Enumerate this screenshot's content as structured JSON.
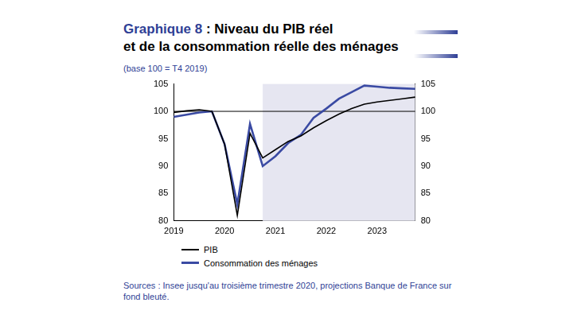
{
  "chart_data": {
    "type": "line",
    "title": [
      "Graphique 8 : Niveau du PIB réel",
      "et de la consommation réelle des ménages"
    ],
    "subtitle": "(base 100 = T4 2019)",
    "source": "Sources : Insee jusqu'au troisième trimestre 2020, projections Banque de France sur fond bleuté.",
    "categories": [
      "2019",
      null,
      null,
      null,
      "2020",
      null,
      null,
      null,
      "2021",
      null,
      null,
      null,
      "2022",
      null,
      null,
      null,
      "2023",
      null,
      null,
      null
    ],
    "series": [
      {
        "name": "PIB",
        "color": "#000000",
        "values": [
          99.8,
          100.1,
          100.3,
          100,
          94,
          81,
          96,
          91.5,
          93,
          94.5,
          95.5,
          97,
          98.3,
          99.5,
          100.5,
          101.3,
          101.7,
          102,
          102.3,
          102.6
        ]
      },
      {
        "name": "Consommation des ménages",
        "color": "#3a4aa3",
        "values": [
          99,
          99.4,
          99.8,
          100,
          94,
          83,
          97.7,
          90,
          91.8,
          94.2,
          95.7,
          98.8,
          100.5,
          102.3,
          103.5,
          104.7,
          104.5,
          104.3,
          104.2,
          104.1
        ]
      }
    ],
    "ylim": [
      80,
      105
    ],
    "yticks": [
      80,
      85,
      90,
      95,
      100,
      105
    ],
    "y2lim": [
      80,
      105
    ],
    "y2ticks": [
      80,
      85,
      90,
      95,
      100,
      105
    ],
    "grid": false,
    "legend": "bottom-left",
    "reference_line": 100,
    "shaded_range": [
      7,
      19
    ]
  }
}
